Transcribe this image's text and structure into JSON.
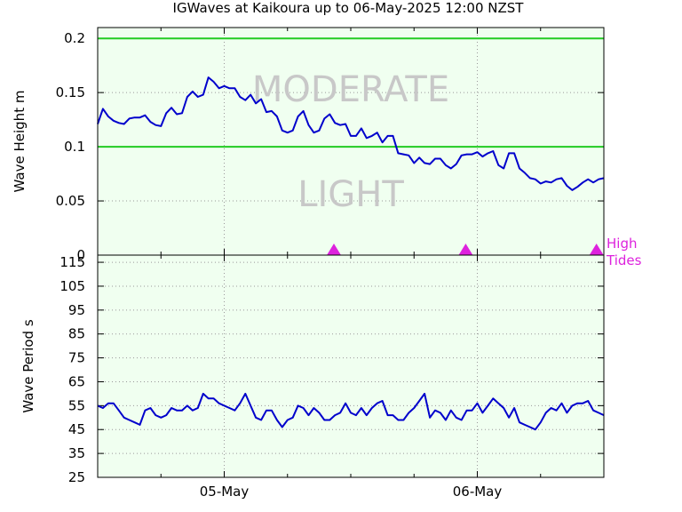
{
  "title": "IGWaves at Kaikoura up to 06-May-2025 12:00 NZST",
  "colors": {
    "background": "#f0fff0",
    "series": "#0000cc",
    "threshold": "#22cc22",
    "tide": "#dd22dd",
    "zone_text": "#c8c8c8",
    "grid": "#999999"
  },
  "chart_data": [
    {
      "type": "line",
      "name": "wave-height",
      "ylabel": "Wave Height m",
      "ylim": [
        0,
        0.21
      ],
      "yticks": [
        "0",
        "0.05",
        "0.1",
        "0.15",
        "0.2"
      ],
      "yticks_values": [
        0,
        0.05,
        0.1,
        0.15,
        0.2
      ],
      "grid": true,
      "thresholds": [
        0.1,
        0.2
      ],
      "zone_labels": {
        "upper": "MODERATE",
        "lower": "LIGHT"
      },
      "tide_label": "High Tides",
      "tide_marks_hours": [
        22.4,
        34.9,
        47.3
      ],
      "x_range_hours": [
        0,
        48
      ],
      "x": [
        0.0,
        0.5,
        1.0,
        1.5,
        2.0,
        2.5,
        3.0,
        3.5,
        4.0,
        4.5,
        5.0,
        5.5,
        6.0,
        6.5,
        7.0,
        7.5,
        8.0,
        8.5,
        9.0,
        9.5,
        10.0,
        10.5,
        11.0,
        11.5,
        12.0,
        12.5,
        13.0,
        13.5,
        14.0,
        14.5,
        15.0,
        15.5,
        16.0,
        16.5,
        17.0,
        17.5,
        18.0,
        18.5,
        19.0,
        19.5,
        20.0,
        20.5,
        21.0,
        21.5,
        22.0,
        22.5,
        23.0,
        23.5,
        24.0,
        24.5,
        25.0,
        25.5,
        26.0,
        26.5,
        27.0,
        27.5,
        28.0,
        28.5,
        29.0,
        29.5,
        30.0,
        30.5,
        31.0,
        31.5,
        32.0,
        32.5,
        33.0,
        33.5,
        34.0,
        34.5,
        35.0,
        35.5,
        36.0,
        36.5,
        37.0,
        37.5,
        38.0,
        38.5,
        39.0,
        39.5,
        40.0,
        40.5,
        41.0,
        41.5,
        42.0,
        42.5,
        43.0,
        43.5,
        44.0,
        44.5,
        45.0,
        45.5,
        46.0,
        46.5,
        47.0,
        47.5,
        48.0
      ],
      "y": [
        0.121,
        0.135,
        0.128,
        0.124,
        0.122,
        0.121,
        0.126,
        0.127,
        0.127,
        0.129,
        0.123,
        0.12,
        0.119,
        0.131,
        0.136,
        0.13,
        0.131,
        0.146,
        0.151,
        0.146,
        0.148,
        0.164,
        0.16,
        0.154,
        0.156,
        0.154,
        0.154,
        0.146,
        0.143,
        0.148,
        0.14,
        0.144,
        0.132,
        0.133,
        0.128,
        0.115,
        0.113,
        0.115,
        0.128,
        0.133,
        0.12,
        0.113,
        0.115,
        0.126,
        0.13,
        0.122,
        0.12,
        0.121,
        0.11,
        0.11,
        0.117,
        0.108,
        0.11,
        0.113,
        0.104,
        0.11,
        0.11,
        0.094,
        0.093,
        0.092,
        0.085,
        0.09,
        0.085,
        0.084,
        0.089,
        0.089,
        0.083,
        0.08,
        0.084,
        0.092,
        0.093,
        0.093,
        0.095,
        0.091,
        0.094,
        0.096,
        0.083,
        0.08,
        0.094,
        0.094,
        0.08,
        0.076,
        0.071,
        0.07,
        0.066,
        0.068,
        0.067,
        0.07,
        0.071,
        0.064,
        0.06,
        0.063,
        0.067,
        0.07,
        0.067,
        0.07,
        0.071
      ]
    },
    {
      "type": "line",
      "name": "wave-period",
      "ylabel": "Wave Period s",
      "ylim": [
        25,
        118
      ],
      "yticks": [
        "25",
        "35",
        "45",
        "55",
        "65",
        "75",
        "85",
        "95",
        "105",
        "115"
      ],
      "yticks_values": [
        25,
        35,
        45,
        55,
        65,
        75,
        85,
        95,
        105,
        115
      ],
      "grid": true,
      "x_range_hours": [
        0,
        48
      ],
      "xticks": [
        "05-May",
        "06-May"
      ],
      "xticks_hours": [
        12,
        36
      ],
      "x": [
        0.0,
        0.5,
        1.0,
        1.5,
        2.0,
        2.5,
        3.0,
        3.5,
        4.0,
        4.5,
        5.0,
        5.5,
        6.0,
        6.5,
        7.0,
        7.5,
        8.0,
        8.5,
        9.0,
        9.5,
        10.0,
        10.5,
        11.0,
        11.5,
        12.0,
        12.5,
        13.0,
        13.5,
        14.0,
        14.5,
        15.0,
        15.5,
        16.0,
        16.5,
        17.0,
        17.5,
        18.0,
        18.5,
        19.0,
        19.5,
        20.0,
        20.5,
        21.0,
        21.5,
        22.0,
        22.5,
        23.0,
        23.5,
        24.0,
        24.5,
        25.0,
        25.5,
        26.0,
        26.5,
        27.0,
        27.5,
        28.0,
        28.5,
        29.0,
        29.5,
        30.0,
        30.5,
        31.0,
        31.5,
        32.0,
        32.5,
        33.0,
        33.5,
        34.0,
        34.5,
        35.0,
        35.5,
        36.0,
        36.5,
        37.0,
        37.5,
        38.0,
        38.5,
        39.0,
        39.5,
        40.0,
        40.5,
        41.0,
        41.5,
        42.0,
        42.5,
        43.0,
        43.5,
        44.0,
        44.5,
        45.0,
        45.5,
        46.0,
        46.5,
        47.0,
        47.5,
        48.0
      ],
      "y": [
        55,
        54,
        56,
        56,
        53,
        50,
        49,
        48,
        47,
        53,
        54,
        51,
        50,
        51,
        54,
        53,
        53,
        55,
        53,
        54,
        60,
        58,
        58,
        56,
        55,
        54,
        53,
        56,
        60,
        55,
        50,
        49,
        53,
        53,
        49,
        46,
        49,
        50,
        55,
        54,
        51,
        54,
        52,
        49,
        49,
        51,
        52,
        56,
        52,
        51,
        54,
        51,
        54,
        56,
        57,
        51,
        51,
        49,
        49,
        52,
        54,
        57,
        60,
        50,
        53,
        52,
        49,
        53,
        50,
        49,
        53,
        53,
        56,
        52,
        55,
        58,
        56,
        54,
        50,
        54,
        48,
        47,
        46,
        45,
        48,
        52,
        54,
        53,
        56,
        52,
        55,
        56,
        56,
        57,
        53,
        52,
        51
      ]
    }
  ]
}
